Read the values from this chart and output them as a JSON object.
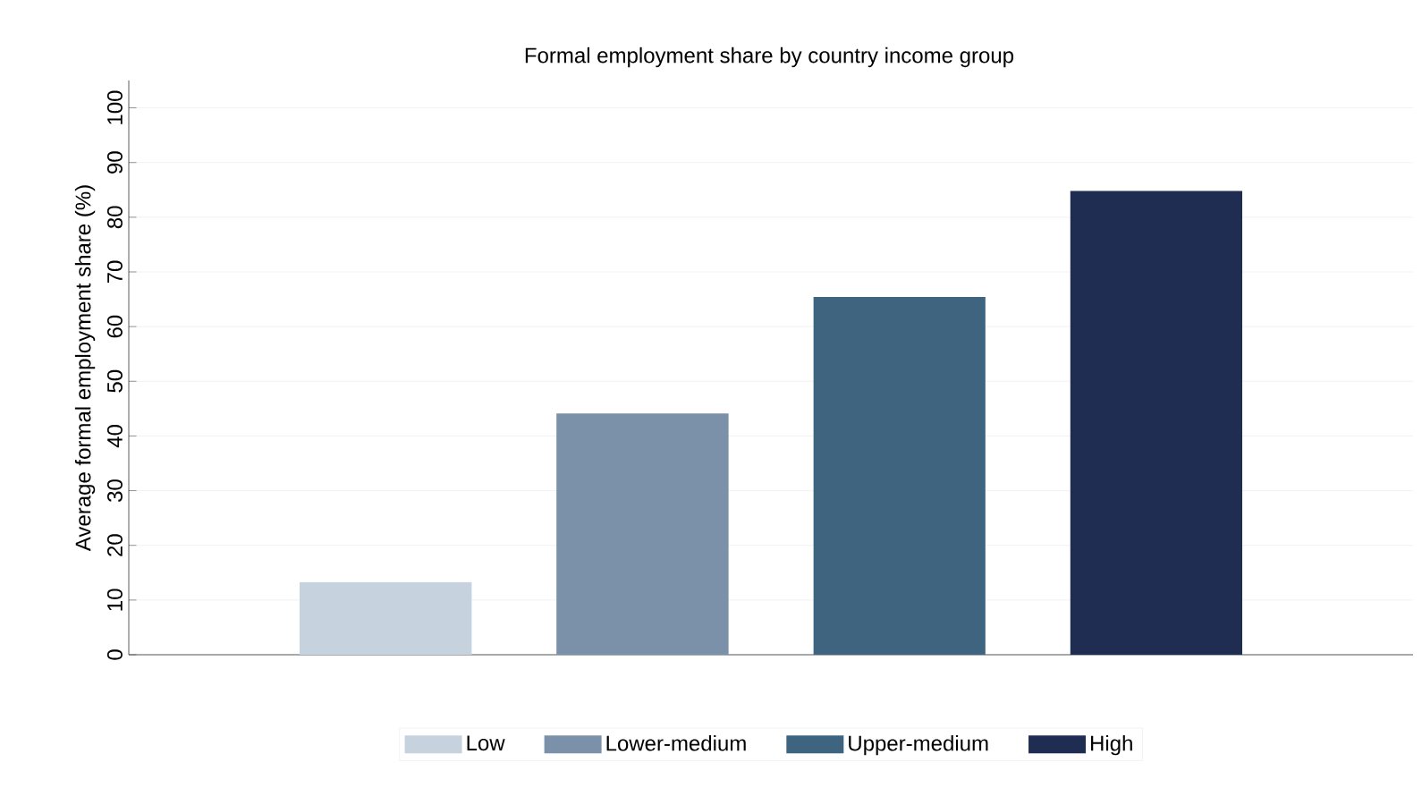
{
  "chart_data": {
    "type": "bar",
    "title": "Formal employment share by country income group",
    "ylabel": "Average formal employment share (%)",
    "categories": [
      null,
      null,
      null,
      null
    ],
    "series": [
      {
        "name": "Low",
        "color": "#c6d3df",
        "values": [
          13.3,
          null,
          null,
          null
        ]
      },
      {
        "name": "Lower-medium",
        "color": "#7a91a9",
        "values": [
          null,
          44.1,
          null,
          null
        ]
      },
      {
        "name": "Upper-medium",
        "color": "#3e6480",
        "values": [
          null,
          null,
          65.4,
          null
        ]
      },
      {
        "name": "High",
        "color": "#1f2d53",
        "values": [
          null,
          null,
          null,
          84.8
        ]
      }
    ],
    "ylim": [
      0,
      105
    ],
    "yticks": [
      0,
      10,
      20,
      30,
      40,
      50,
      60,
      70,
      80,
      90,
      100
    ],
    "grid": "y",
    "legend": "bottom"
  }
}
